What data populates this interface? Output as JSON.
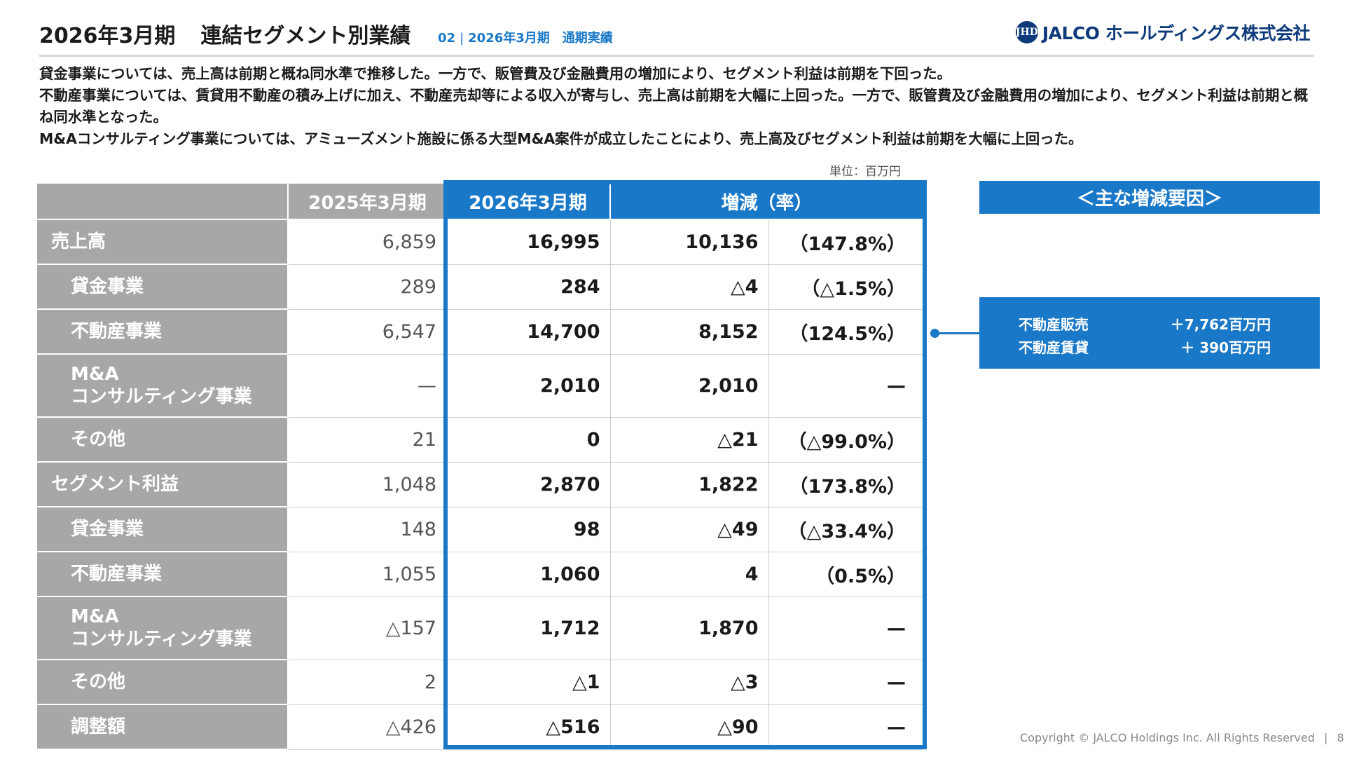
{
  "header": {
    "title_period": "2026年3月期",
    "title_main": "連結セグメント別業績",
    "sub_number": "02",
    "sub_separator": "|",
    "sub_text": "2026年3月期　通期実績",
    "logo_mark": "JHD",
    "logo_text": "JALCO ホールディングス株式会社"
  },
  "description": [
    "貸金事業については、売上高は前期と概ね同水準で推移した。一方で、販管費及び金融費用の増加により、セグメント利益は前期を下回った。",
    "不動産事業については、賃貸用不動産の積み上げに加え、不動産売却等による収入が寄与し、売上高は前期を大幅に上回った。一方で、販管費及び金融費用の増加により、セグメント利益は前期と概ね同水準となった。",
    "M&Aコンサルティング事業については、アミューズメント施設に係る大型M&A案件が成立したことにより、売上高及びセグメント利益は前期を大幅に上回った。"
  ],
  "unit": "単位：百万円",
  "table": {
    "headers": {
      "prev": "2025年3月期",
      "cur": "2026年3月期",
      "change": "増減（率）"
    },
    "rows": [
      {
        "label": "売上高",
        "prev": "6,859",
        "cur": "16,995",
        "diff": "10,136",
        "rate": "（147.8%）"
      },
      {
        "label": "貸金事業",
        "prev": "289",
        "cur": "284",
        "diff": "△4",
        "rate": "（△1.5%）"
      },
      {
        "label": "不動産事業",
        "prev": "6,547",
        "cur": "14,700",
        "diff": "8,152",
        "rate": "（124.5%）"
      },
      {
        "label1": "M&A",
        "label2": "コンサルティング事業",
        "prev": "—",
        "cur": "2,010",
        "diff": "2,010",
        "rate": "—"
      },
      {
        "label": "その他",
        "prev": "21",
        "cur": "0",
        "diff": "△21",
        "rate": "（△99.0%）"
      },
      {
        "label": "セグメント利益",
        "prev": "1,048",
        "cur": "2,870",
        "diff": "1,822",
        "rate": "（173.8%）"
      },
      {
        "label": "貸金事業",
        "prev": "148",
        "cur": "98",
        "diff": "△49",
        "rate": "（△33.4%）"
      },
      {
        "label": "不動産事業",
        "prev": "1,055",
        "cur": "1,060",
        "diff": "4",
        "rate": "（0.5%）"
      },
      {
        "label1": "M&A",
        "label2": "コンサルティング事業",
        "prev": "△157",
        "cur": "1,712",
        "diff": "1,870",
        "rate": "—"
      },
      {
        "label": "その他",
        "prev": "2",
        "cur": "△1",
        "diff": "△3",
        "rate": "—"
      },
      {
        "label": "調整額",
        "prev": "△426",
        "cur": "△516",
        "diff": "△90",
        "rate": "—"
      }
    ]
  },
  "factors": {
    "heading": "＜主な増減要因＞",
    "items": [
      {
        "label": "不動産販売",
        "value": "＋7,762百万円"
      },
      {
        "label": "不動産賃貸",
        "value": "＋ 390百万円"
      }
    ]
  },
  "footer": {
    "copyright": "Copyright © JALCO Holdings Inc. All Rights Reserved",
    "separator": "|",
    "page": "8"
  },
  "colors": {
    "accent": "#1a78c8",
    "label_gray": "#a7a7a7",
    "logo_navy": "#0d3a7a"
  }
}
